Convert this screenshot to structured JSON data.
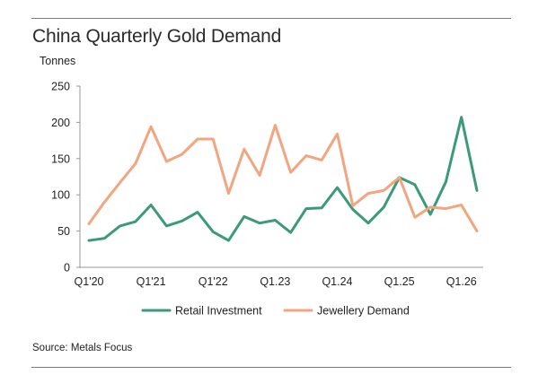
{
  "header": {
    "title": "China Quarterly Gold Demand"
  },
  "footer": {
    "source": "Source: Metals Focus"
  },
  "chart_data": {
    "type": "line",
    "title": "China Quarterly Gold Demand",
    "ylabel": "Tonnes",
    "xlabel": "",
    "ylim": [
      0,
      250
    ],
    "yticks": [
      0,
      50,
      100,
      150,
      200,
      250
    ],
    "grid": false,
    "legend_position": "bottom",
    "categories": [
      "Q1'20",
      "Q2'20",
      "Q3'20",
      "Q4'20",
      "Q1'21",
      "Q2'21",
      "Q3'21",
      "Q4'21",
      "Q1'22",
      "Q2'22",
      "Q3'22",
      "Q4'22",
      "Q1.23",
      "Q2.23",
      "Q3.23",
      "Q4.23",
      "Q1.24",
      "Q2.24",
      "Q3.24",
      "Q4.24",
      "Q1.25",
      "Q2.25",
      "Q3.25",
      "Q4.25",
      "Q1.26",
      "Q2.26"
    ],
    "xtick_labels": [
      {
        "index": 0,
        "label": "Q1'20"
      },
      {
        "index": 4,
        "label": "Q1'21"
      },
      {
        "index": 8,
        "label": "Q1'22"
      },
      {
        "index": 12,
        "label": "Q1.23"
      },
      {
        "index": 16,
        "label": "Q1.24"
      },
      {
        "index": 20,
        "label": "Q1.25"
      },
      {
        "index": 24,
        "label": "Q1.26"
      }
    ],
    "series": [
      {
        "name": "Retail Investment",
        "color": "#3a9a7a",
        "values": [
          37,
          40,
          57,
          63,
          86,
          57,
          64,
          76,
          49,
          37,
          70,
          61,
          65,
          48,
          81,
          82,
          110,
          80,
          61,
          83,
          124,
          114,
          73,
          118,
          207,
          106
        ]
      },
      {
        "name": "Jewellery Demand",
        "color": "#f2a57f",
        "values": [
          60,
          90,
          117,
          143,
          194,
          146,
          156,
          177,
          177,
          102,
          163,
          127,
          196,
          131,
          154,
          148,
          184,
          85,
          102,
          106,
          124,
          69,
          83,
          81,
          86,
          50
        ]
      }
    ]
  }
}
